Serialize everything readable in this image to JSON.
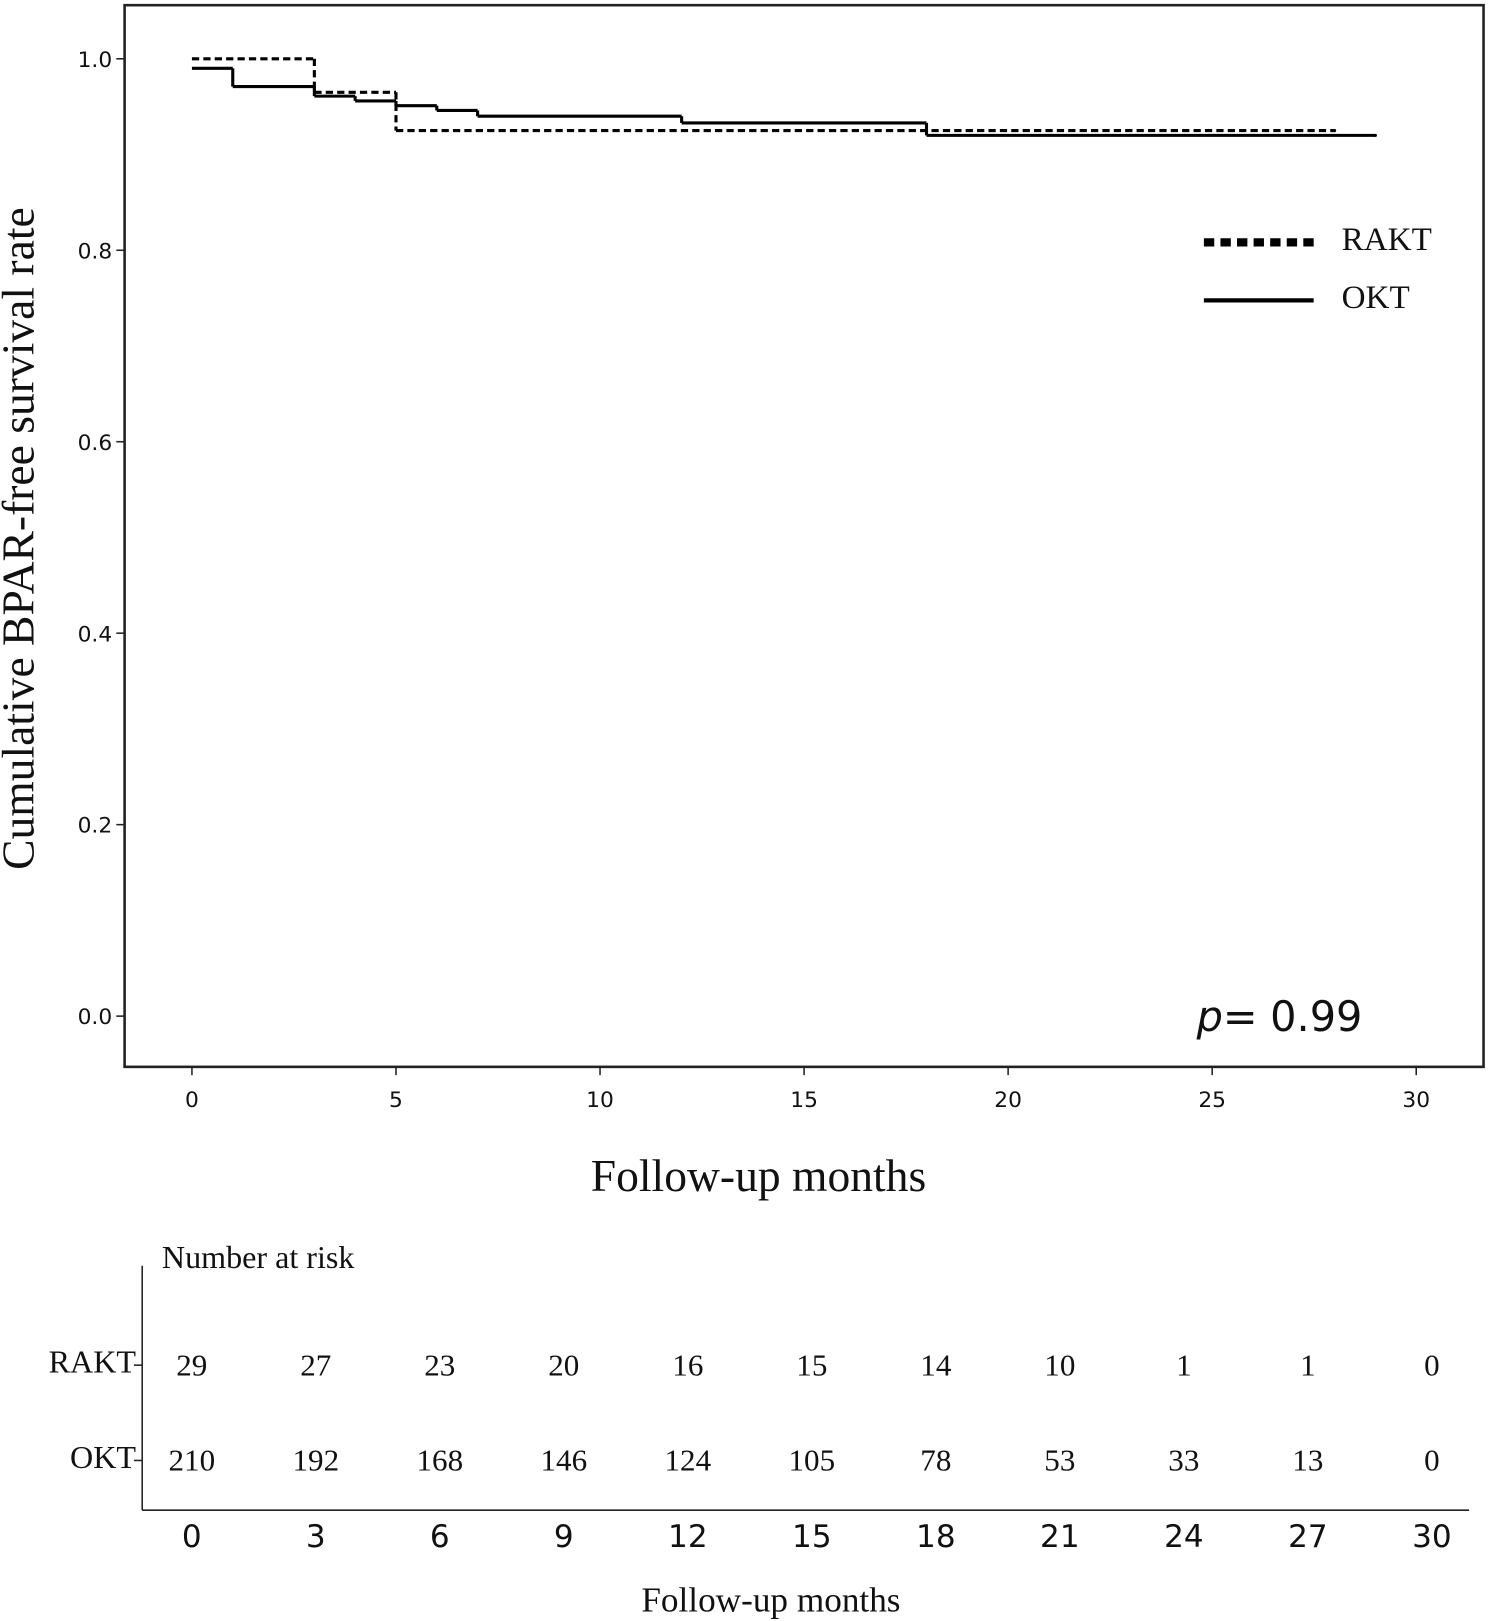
{
  "chart_data": {
    "type": "step",
    "y_label": "Cumulative BPAR-free survival rate",
    "x_label": "Follow-up months",
    "xlim": [
      -1.65,
      31.65
    ],
    "ylim": [
      -0.053,
      1.056
    ],
    "xticks": [
      0,
      5,
      10,
      15,
      20,
      25,
      30
    ],
    "yticks": [
      {
        "value": 0,
        "label": "0.0"
      },
      {
        "value": 0.2,
        "label": "0.2"
      },
      {
        "value": 0.4,
        "label": "0.4"
      },
      {
        "value": 0.6,
        "label": "0.6"
      },
      {
        "value": 0.8,
        "label": "0.8"
      },
      {
        "value": 1,
        "label": "1.0"
      }
    ],
    "legend": "upper right",
    "series": [
      {
        "name": "RAKT",
        "color": "#000000",
        "style": "dotted",
        "x": [
          0,
          3,
          5,
          28
        ],
        "values": [
          1.0,
          0.965,
          0.925,
          0.925
        ]
      },
      {
        "name": "OKT",
        "color": "#000000",
        "style": "solid",
        "x": [
          0,
          1,
          3,
          4,
          5,
          6,
          7,
          12,
          18,
          29
        ],
        "values": [
          0.99,
          0.971,
          0.961,
          0.956,
          0.951,
          0.946,
          0.94,
          0.933,
          0.92,
          0.92
        ]
      }
    ],
    "p_label": "p=",
    "p_value": "0.99"
  },
  "risk_table": {
    "title": "Number at risk",
    "x_label": "Follow-up months",
    "xlim": [
      -1.2,
      30.9
    ],
    "xticks": [
      0,
      3,
      6,
      9,
      12,
      15,
      18,
      21,
      24,
      27,
      30
    ],
    "rows": [
      {
        "label": "RAKT",
        "values": [
          "29",
          "27",
          "23",
          "20",
          "16",
          "15",
          "14",
          "10",
          "1",
          "1",
          "0"
        ]
      },
      {
        "label": "OKT",
        "values": [
          "210",
          "192",
          "168",
          "146",
          "124",
          "105",
          "78",
          "53",
          "33",
          "13",
          "0"
        ]
      }
    ]
  }
}
